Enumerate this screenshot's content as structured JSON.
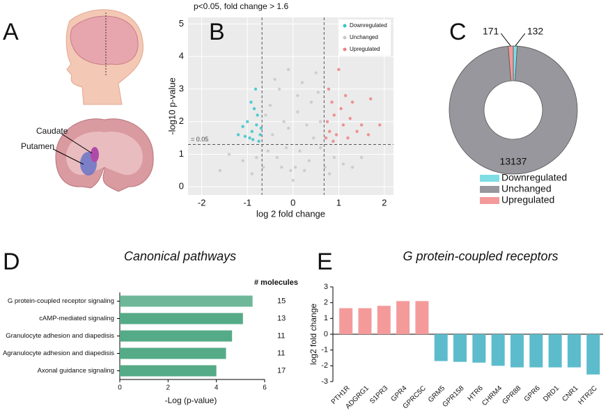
{
  "illustration": {
    "panel": "A",
    "labels": [
      "Caudate",
      "Putamen"
    ]
  },
  "chart_data": [
    {
      "type": "scatter",
      "panel": "B",
      "title": "p<0.05, fold change > 1.6",
      "x_label": "log 2 fold change",
      "y_label": "-log10 p-value",
      "annotation": "= 0.05",
      "xlim": [
        -2.3,
        2.2
      ],
      "ylim": [
        -0.25,
        5.2
      ],
      "xticks": [
        -2,
        -1,
        0,
        1,
        2
      ],
      "yticks": [
        0,
        1,
        2,
        3,
        4,
        5
      ],
      "thresholds": {
        "x": [
          -0.68,
          0.68
        ],
        "y": 1.3
      },
      "legend": "top-right",
      "series": [
        {
          "name": "Downregulated",
          "color": "#36c5cc",
          "x": [
            -1.2,
            -1.1,
            -1.0,
            -0.95,
            -0.9,
            -0.85,
            -0.8,
            -0.75,
            -0.72,
            -0.78,
            -0.88,
            -1.05,
            -0.82,
            -0.7,
            -0.92
          ],
          "values": [
            1.6,
            1.85,
            2.0,
            1.5,
            1.7,
            2.4,
            1.9,
            1.4,
            1.6,
            2.2,
            1.45,
            1.55,
            3.0,
            1.8,
            2.6
          ]
        },
        {
          "name": "Unchanged",
          "color": "#c8c8c8",
          "x": [
            -0.1,
            0.2,
            -0.3,
            0.1,
            -0.5,
            0.4,
            0.55,
            -0.6,
            -0.2,
            0.3,
            0.6,
            -0.45,
            0.45,
            -0.15,
            0.15,
            -0.35,
            0.35,
            0,
            -0.05,
            0.05,
            -0.25,
            0.25,
            -0.55,
            0.6,
            -0.8,
            0.9,
            -1.1,
            1.1,
            -1.4,
            1.5,
            -1.6,
            -0.9,
            0.8,
            -0.1,
            0.1,
            -0.4,
            0.5,
            1.3,
            -0.65,
            0.7
          ],
          "values": [
            3.6,
            3.2,
            3.0,
            2.8,
            2.5,
            2.6,
            2.9,
            2.2,
            2.0,
            1.9,
            2.0,
            1.6,
            1.5,
            1.2,
            1.1,
            0.9,
            0.8,
            0.2,
            0.5,
            0.6,
            0.6,
            0.5,
            1.1,
            1.2,
            0.9,
            0.9,
            0.8,
            0.7,
            1.0,
            0.9,
            0.5,
            0.4,
            0.4,
            1.8,
            2.3,
            3.3,
            3.5,
            0.6,
            0.6,
            0.6
          ]
        },
        {
          "name": "Upregulated",
          "color": "#f08080",
          "x": [
            0.72,
            0.75,
            0.8,
            0.85,
            0.9,
            0.95,
            1.0,
            1.05,
            1.1,
            1.15,
            1.2,
            1.25,
            1.3,
            1.4,
            1.5,
            1.65,
            1.9,
            1.7,
            0.78,
            0.88
          ],
          "values": [
            1.5,
            2.0,
            1.7,
            2.6,
            2.2,
            1.6,
            3.6,
            2.4,
            1.9,
            2.8,
            1.5,
            2.1,
            2.6,
            1.7,
            1.9,
            1.6,
            1.9,
            2.7,
            3.0,
            1.4
          ]
        }
      ]
    },
    {
      "type": "pie",
      "panel": "C",
      "categories": [
        "Downregulated",
        "Unchanged",
        "Upregulated"
      ],
      "values": [
        132,
        13137,
        171
      ],
      "colors": [
        "#7fdde6",
        "#97979d",
        "#f49a9a"
      ]
    },
    {
      "type": "bar",
      "orientation": "horizontal",
      "panel": "D",
      "title": "Canonical pathways",
      "x_label": "-Log (p-value)",
      "extra_label": "# molecules",
      "categories": [
        "G protein-coupled receptor signaling",
        "cAMP-mediated signaling",
        "Granulocyte adhesion and diapedisis",
        "Agranulocyte adhesion and diapedisis",
        "Axonal guidance signaling"
      ],
      "values": [
        5.5,
        5.1,
        4.65,
        4.4,
        4.0
      ],
      "molecules": [
        15,
        13,
        11,
        11,
        17
      ],
      "color": "#55ab87",
      "xlim": [
        0,
        6
      ],
      "xticks": [
        0,
        2,
        4,
        6
      ]
    },
    {
      "type": "bar",
      "panel": "E",
      "title": "G protein-coupled receptors",
      "y_label": "log2 fold change",
      "categories": [
        "PTH1R",
        "ADGRG1",
        "S1PR3",
        "GPR4",
        "GPRC5C",
        "GRM5",
        "GPR158",
        "HTR6",
        "CHRM4",
        "GPR88",
        "GPR6",
        "DRD1",
        "CNR1",
        "HTR2C"
      ],
      "values": [
        1.65,
        1.65,
        1.8,
        2.1,
        2.1,
        -1.7,
        -1.75,
        -1.8,
        -2.0,
        -2.1,
        -2.1,
        -2.1,
        -2.1,
        -2.55
      ],
      "colors": [
        "#f49a9a",
        "#5cbccb"
      ],
      "ylim": [
        -3,
        3
      ],
      "yticks": [
        -3,
        -2,
        -1,
        0,
        1,
        2,
        3
      ]
    }
  ]
}
